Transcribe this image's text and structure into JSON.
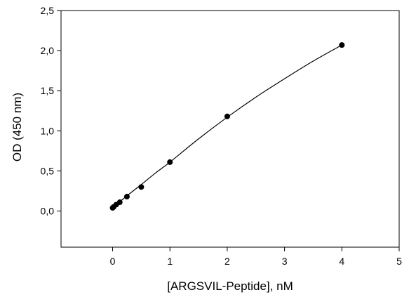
{
  "chart_data": {
    "type": "scatter",
    "title": "",
    "xlabel": "[ARGSVIL-Peptide], nM",
    "ylabel": "OD (450 nm)",
    "xlim": [
      -0.9,
      5
    ],
    "ylim": [
      -0.45,
      2.5
    ],
    "x_ticks": [
      0,
      1,
      2,
      3,
      4,
      5
    ],
    "x_tick_labels": [
      "0",
      "1",
      "2",
      "3",
      "4",
      "5"
    ],
    "y_ticks": [
      0,
      0.5,
      1,
      1.5,
      2,
      2.5
    ],
    "y_tick_labels": [
      "0,0",
      "0,5",
      "1,0",
      "1,5",
      "2,0",
      "2,5"
    ],
    "grid": false,
    "legend": false,
    "series": [
      {
        "x": [
          0,
          0.0156,
          0.0625,
          0.125,
          0.25,
          0.5,
          1,
          2,
          4
        ],
        "y": [
          0.04,
          0.05,
          0.08,
          0.11,
          0.18,
          0.3,
          0.61,
          1.18,
          2.07
        ],
        "marker": "filled-circle",
        "color": "#000000"
      }
    ],
    "fit_curve": {
      "x": [
        0,
        0.25,
        0.5,
        0.75,
        1,
        1.5,
        2,
        2.5,
        3,
        3.5,
        4
      ],
      "y": [
        0.04,
        0.19,
        0.33,
        0.475,
        0.61,
        0.9,
        1.17,
        1.42,
        1.65,
        1.87,
        2.07
      ],
      "color": "#000000"
    }
  }
}
